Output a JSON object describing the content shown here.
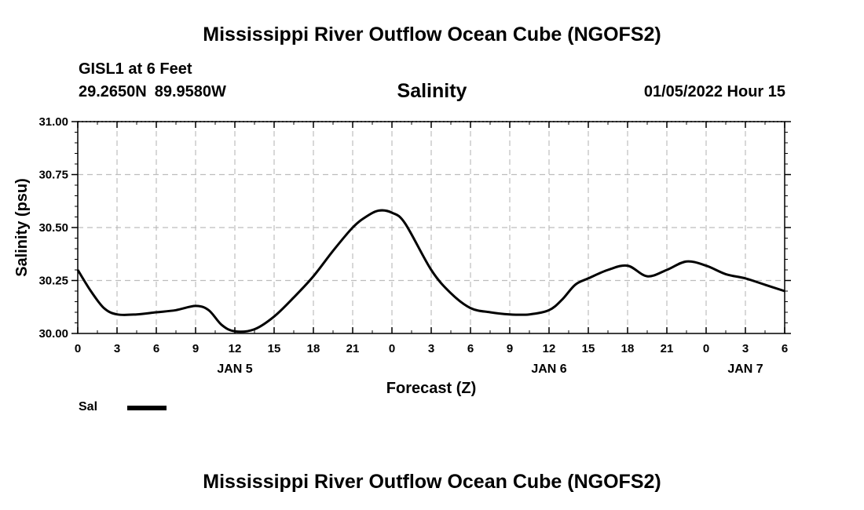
{
  "header": {
    "title": "Mississippi River Outflow Ocean Cube (NGOFS2)",
    "station": "GISL1 at 6 Feet",
    "lat": "29.2650N",
    "lon": "89.9580W",
    "chart_title": "Salinity",
    "datetime": "01/05/2022 Hour 15"
  },
  "legend": {
    "label": "Sal"
  },
  "footer": {
    "title": "Mississippi River Outflow Ocean Cube (NGOFS2)"
  },
  "chart_data": {
    "type": "line",
    "title": "Salinity",
    "xlabel": "Forecast (Z)",
    "ylabel": "Salinity (psu)",
    "x_unit": "forecast hour",
    "xlim": [
      0,
      54
    ],
    "ylim": [
      30.0,
      31.0
    ],
    "x_tick_labels": [
      "0",
      "3",
      "6",
      "9",
      "12",
      "15",
      "18",
      "21",
      "0",
      "3",
      "6",
      "9",
      "12",
      "15",
      "18",
      "21",
      "0",
      "3",
      "6"
    ],
    "date_labels": [
      {
        "text": "JAN 5",
        "tick_index": 4
      },
      {
        "text": "JAN 6",
        "tick_index": 12
      },
      {
        "text": "JAN 7",
        "tick_index": 17
      }
    ],
    "y_ticks": [
      "30.00",
      "30.25",
      "30.50",
      "30.75",
      "31.00"
    ],
    "grid": true,
    "line_color": "#000000",
    "series": [
      {
        "name": "Sal",
        "x": [
          0,
          1,
          2,
          3,
          4.5,
          6,
          7.5,
          9,
          10,
          11,
          12,
          13.5,
          15,
          16.5,
          18,
          19.5,
          21,
          22,
          23,
          24,
          25,
          27,
          28.5,
          30,
          31.5,
          33,
          34.5,
          36,
          37,
          38,
          39,
          40.5,
          42,
          43.5,
          45,
          46.5,
          48,
          49.5,
          51,
          52.5,
          54
        ],
        "y": [
          30.3,
          30.2,
          30.12,
          30.09,
          30.09,
          30.1,
          30.11,
          30.13,
          30.11,
          30.04,
          30.01,
          30.02,
          30.08,
          30.17,
          30.27,
          30.39,
          30.5,
          30.55,
          30.58,
          30.57,
          30.52,
          30.3,
          30.19,
          30.12,
          30.1,
          30.09,
          30.09,
          30.11,
          30.16,
          30.23,
          30.26,
          30.3,
          30.32,
          30.27,
          30.3,
          30.34,
          30.32,
          30.28,
          30.26,
          30.23,
          30.2
        ]
      }
    ]
  }
}
